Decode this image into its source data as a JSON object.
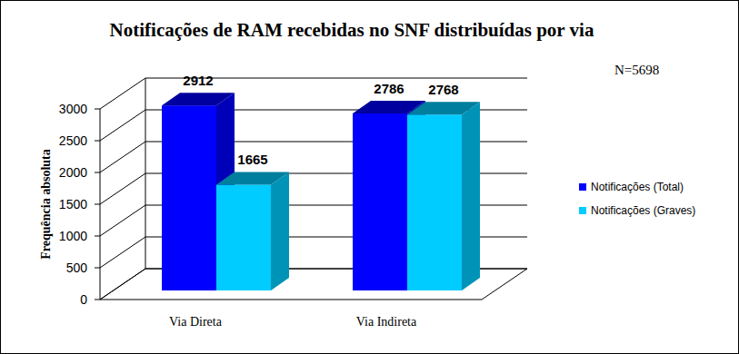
{
  "chart_data": {
    "type": "bar",
    "title": "Notificações de RAM recebidas no SNF distribuídas por via",
    "annotation": "N=5698",
    "y_label": "Frequência absoluta",
    "categories": [
      "Via Direta",
      "Via Indireta"
    ],
    "series": [
      {
        "name": "Notificações (Total)",
        "color": "#0000ff",
        "values": [
          2912,
          2786
        ]
      },
      {
        "name": "Notificações (Graves)",
        "color": "#00ccff",
        "values": [
          1665,
          2768
        ]
      }
    ],
    "ylim": [
      0,
      3000
    ],
    "yticks": [
      0,
      500,
      1000,
      1500,
      2000,
      2500,
      3000
    ],
    "grid": true,
    "legend": "right",
    "data_labels": true
  }
}
